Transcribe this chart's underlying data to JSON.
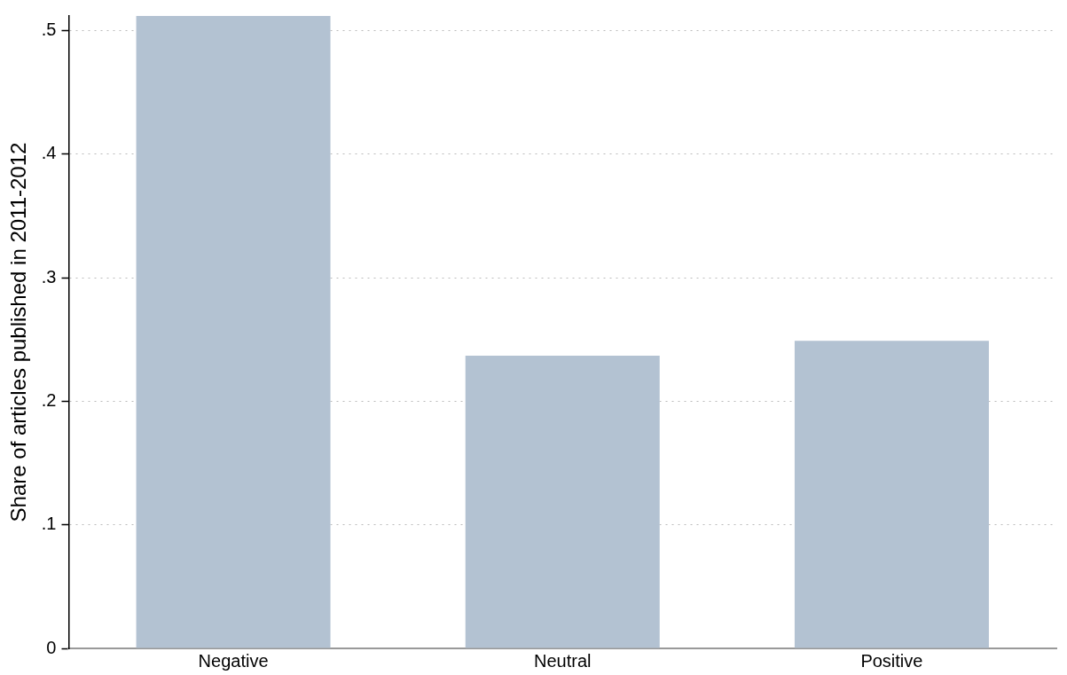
{
  "chart_data": {
    "type": "bar",
    "ylabel": "Share of articles published in 2011-2012",
    "categories": [
      "Negative",
      "Neutral",
      "Positive"
    ],
    "values": [
      0.512,
      0.237,
      0.249
    ],
    "color": "#b3c2d2",
    "ylim": [
      0,
      0.512
    ],
    "yticks": [
      0,
      {
        "value": 0.1,
        "label": ".1"
      },
      {
        "value": 0.2,
        "label": ".2"
      },
      {
        "value": 0.3,
        "label": ".3"
      },
      {
        "value": 0.4,
        "label": ".4"
      },
      {
        "value": 0.5,
        "label": ".5"
      }
    ],
    "grid": "y",
    "legend": false
  }
}
